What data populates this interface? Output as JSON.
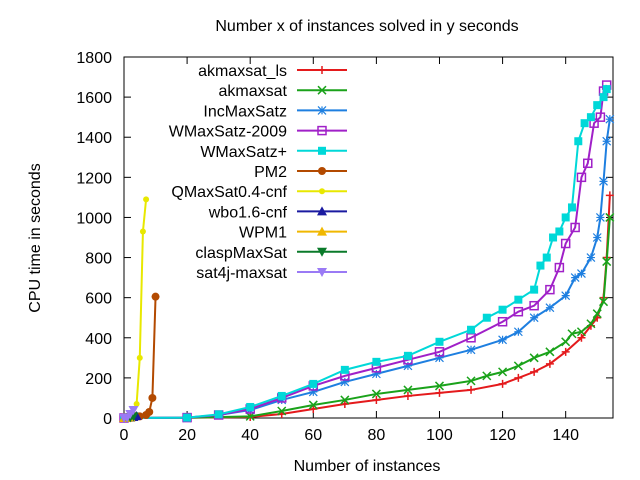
{
  "chart_data": {
    "type": "line",
    "title": "Number x of instances solved in y seconds",
    "xlabel": "Number of instances",
    "ylabel": "CPU time in seconds",
    "xlim": [
      0,
      155
    ],
    "ylim": [
      0,
      1800
    ],
    "xticks": [
      "0",
      "20",
      "40",
      "60",
      "80",
      "100",
      "120",
      "140"
    ],
    "yticks": [
      "0",
      "200",
      "400",
      "600",
      "800",
      "1000",
      "1200",
      "1400",
      "1600",
      "1800"
    ],
    "grid": false,
    "legend_position": "top-left",
    "series": [
      {
        "name": "akmaxsat_ls",
        "color": "#e41a1c",
        "marker": "plus",
        "x": [
          0,
          20,
          40,
          50,
          60,
          70,
          80,
          90,
          100,
          110,
          120,
          125,
          130,
          135,
          140,
          145,
          148,
          150,
          152,
          153,
          154
        ],
        "y": [
          0,
          1,
          5,
          20,
          45,
          70,
          90,
          110,
          125,
          140,
          170,
          200,
          230,
          270,
          330,
          400,
          460,
          500,
          600,
          800,
          1110
        ]
      },
      {
        "name": "akmaxsat",
        "color": "#1aa21a",
        "marker": "cross",
        "x": [
          0,
          20,
          40,
          50,
          60,
          70,
          80,
          90,
          100,
          110,
          115,
          120,
          125,
          130,
          135,
          140,
          142,
          145,
          148,
          150,
          152,
          153,
          154
        ],
        "y": [
          0,
          1,
          8,
          35,
          65,
          90,
          120,
          140,
          160,
          185,
          210,
          230,
          260,
          300,
          330,
          380,
          420,
          430,
          470,
          520,
          580,
          780,
          1000
        ]
      },
      {
        "name": "IncMaxSatz",
        "color": "#1e7fe0",
        "marker": "star",
        "x": [
          0,
          20,
          30,
          40,
          50,
          60,
          70,
          80,
          90,
          100,
          110,
          120,
          125,
          130,
          135,
          140,
          143,
          145,
          148,
          150,
          151,
          152,
          153,
          154
        ],
        "y": [
          0,
          2,
          15,
          40,
          90,
          130,
          180,
          220,
          260,
          300,
          340,
          390,
          430,
          500,
          550,
          610,
          700,
          720,
          800,
          900,
          1000,
          1180,
          1380,
          1490
        ]
      },
      {
        "name": "WMaxSatz-2009",
        "color": "#a020c8",
        "marker": "square",
        "x": [
          0,
          20,
          30,
          40,
          50,
          60,
          70,
          80,
          90,
          100,
          110,
          120,
          125,
          130,
          135,
          138,
          140,
          143,
          145,
          147,
          149,
          151,
          152,
          153
        ],
        "y": [
          0,
          2,
          15,
          45,
          100,
          160,
          210,
          250,
          290,
          330,
          400,
          480,
          530,
          560,
          640,
          750,
          870,
          950,
          1200,
          1270,
          1470,
          1500,
          1630,
          1660
        ]
      },
      {
        "name": "WMaxSatz+",
        "color": "#00d8d8",
        "marker": "filled-square",
        "x": [
          0,
          20,
          30,
          40,
          50,
          60,
          70,
          80,
          90,
          100,
          110,
          115,
          120,
          125,
          130,
          132,
          134,
          136,
          138,
          140,
          142,
          144,
          146,
          148,
          150,
          152,
          153
        ],
        "y": [
          0,
          2,
          18,
          55,
          110,
          170,
          240,
          280,
          310,
          380,
          440,
          500,
          540,
          590,
          640,
          760,
          800,
          900,
          930,
          1000,
          1050,
          1380,
          1470,
          1500,
          1560,
          1600,
          1640
        ]
      },
      {
        "name": "PM2",
        "color": "#b34a00",
        "marker": "filled-circle",
        "x": [
          1,
          3,
          5,
          7,
          8,
          9,
          10
        ],
        "y": [
          2,
          3,
          8,
          15,
          30,
          100,
          605
        ]
      },
      {
        "name": "QMaxSat0.4-cnf",
        "color": "#e8e800",
        "marker": "filled-circle-small",
        "x": [
          1,
          2,
          3,
          4,
          5,
          6,
          7
        ],
        "y": [
          2,
          5,
          20,
          70,
          300,
          930,
          1090
        ]
      },
      {
        "name": "wbo1.6-cnf",
        "color": "#1a1aa0",
        "marker": "filled-triangle",
        "x": [
          0,
          1,
          2,
          3,
          4
        ],
        "y": [
          0,
          1,
          2,
          5,
          10
        ]
      },
      {
        "name": "WPM1",
        "color": "#f0b800",
        "marker": "filled-triangle",
        "x": [
          0,
          1,
          2
        ],
        "y": [
          0,
          1,
          3
        ]
      },
      {
        "name": "claspMaxSat",
        "color": "#0a7a2a",
        "marker": "filled-inv-triangle",
        "x": [
          0,
          1,
          2,
          3
        ],
        "y": [
          0,
          1,
          3,
          8
        ]
      },
      {
        "name": "sat4j-maxsat",
        "color": "#9a7af5",
        "marker": "filled-inv-triangle",
        "x": [
          0,
          1,
          2,
          3
        ],
        "y": [
          0,
          2,
          20,
          40
        ]
      }
    ]
  }
}
